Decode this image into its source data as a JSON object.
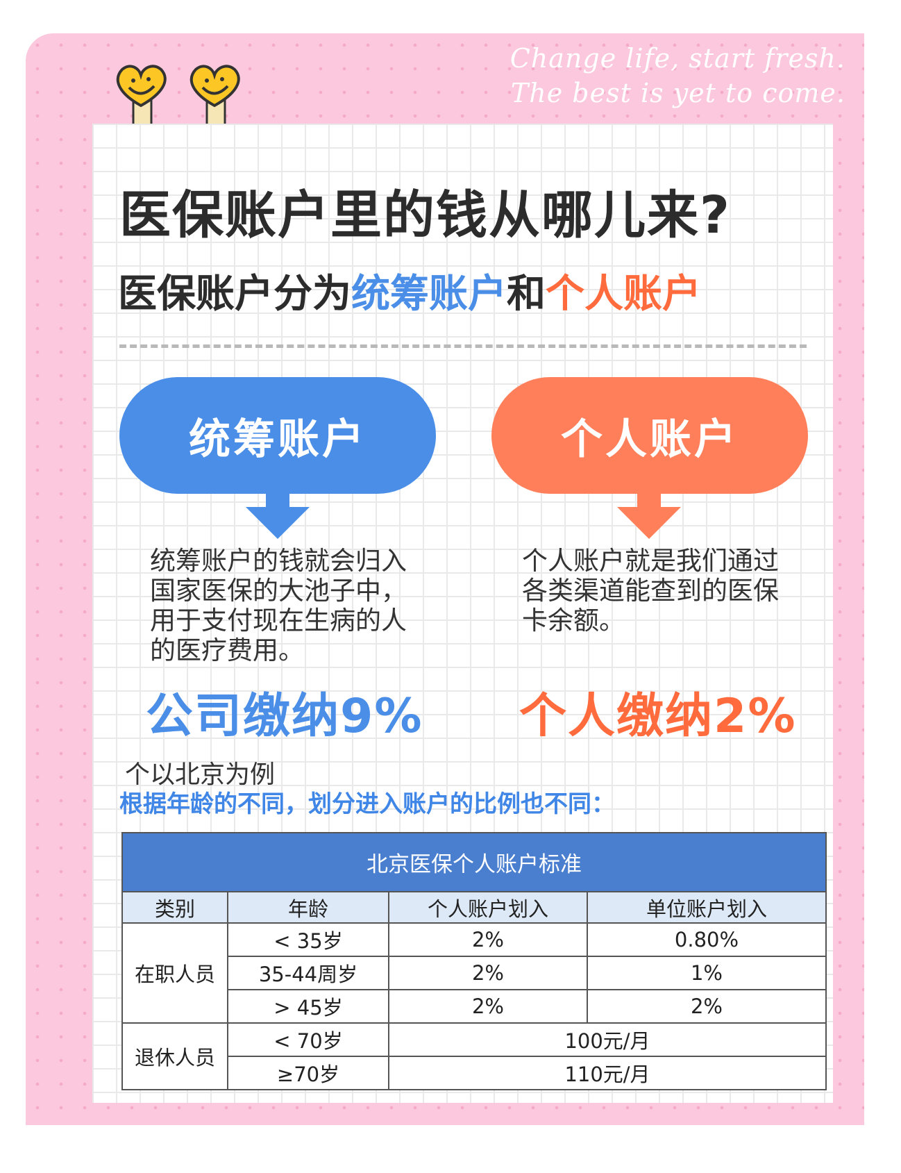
{
  "decor": {
    "script_line1": "Change life, start fresh.",
    "script_line2": "The best is yet to come.",
    "mascot": "smiley-heart-icon"
  },
  "title": "医保账户里的钱从哪儿来?",
  "subtitle": {
    "prefix": "医保账户分为",
    "pooled": "统筹账户",
    "mid": "和",
    "personal": "个人账户"
  },
  "colors": {
    "blue": "#4a8ee8",
    "orange": "#ff7f5a",
    "table_header": "#4a7fd0",
    "table_subheader": "#dde9f7",
    "pink": "#fbc8dd"
  },
  "pooled": {
    "label": "统筹账户",
    "desc": "统筹账户的钱就会归入国家医保的大池子中，用于支付现在生病的人的医疗费用。",
    "contribution": "公司缴纳9%"
  },
  "personal": {
    "label": "个人账户",
    "desc": "个人账户就是我们通过各类渠道能查到的医保卡余额。",
    "contribution": "个人缴纳2%"
  },
  "note": "个以北京为例",
  "note_blue": "根据年龄的不同，划分进入账户的比例也不同：",
  "table": {
    "title": "北京医保个人账户标准",
    "headers": [
      "类别",
      "年龄",
      "个人账户划入",
      "单位账户划入"
    ],
    "employed": {
      "label": "在职人员",
      "rows": [
        [
          "< 35岁",
          "2%",
          "0.80%"
        ],
        [
          "35-44周岁",
          "2%",
          "1%"
        ],
        [
          "> 45岁",
          "2%",
          "2%"
        ]
      ]
    },
    "retired": {
      "label": "退休人员",
      "rows": [
        [
          "< 70岁",
          "100元/月"
        ],
        [
          "≥70岁",
          "110元/月"
        ]
      ]
    }
  }
}
